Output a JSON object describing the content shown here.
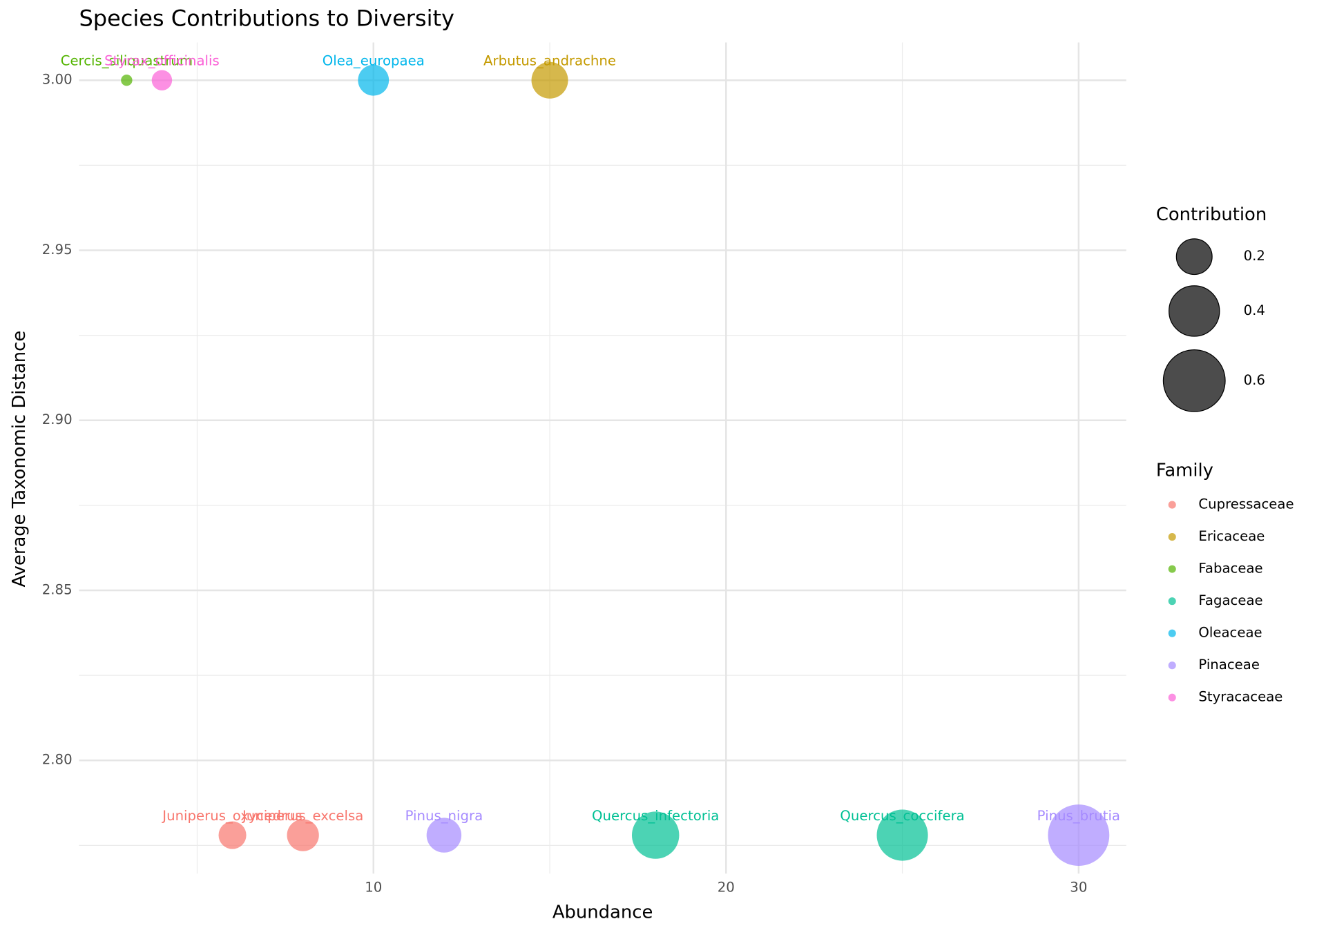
{
  "chart_data": {
    "type": "scatter",
    "title": "Species Contributions to Diversity",
    "x_label": "Abundance",
    "y_label": "Average Taxonomic Distance",
    "xlim": [
      1.65,
      31.35
    ],
    "ylim": [
      2.7667,
      3.0111
    ],
    "xticks": [
      10,
      20,
      30
    ],
    "yticks": [
      {
        "value": 2.8,
        "label": "2.80"
      },
      2.85,
      {
        "value": 2.9,
        "label": "2.90"
      },
      2.95,
      {
        "value": 3.0,
        "label": "3.00"
      }
    ],
    "x_minor_ticks": [
      5,
      15,
      25
    ],
    "y_minor_ticks": [
      2.775,
      2.825,
      2.875,
      2.925,
      2.975
    ],
    "grid": true,
    "legend_position": "right",
    "size_legend": {
      "title": "Contribution",
      "values": [
        0.2,
        0.4,
        0.6
      ]
    },
    "color_legend_title": "Family",
    "series": [
      {
        "name": "Cupressaceae",
        "color": "#F8766D",
        "labels": [
          "Juniperus_oxycedrus",
          "Juniperus_excelsa"
        ],
        "x": [
          6,
          8
        ],
        "y": [
          2.778,
          2.778
        ],
        "sizes": [
          0.12,
          0.16
        ]
      },
      {
        "name": "Ericaceae",
        "color": "#C49A00",
        "labels": [
          "Arbutus_andrachne"
        ],
        "x": [
          15
        ],
        "y": [
          3.0
        ],
        "sizes": [
          0.21
        ]
      },
      {
        "name": "Fabaceae",
        "color": "#53B400",
        "labels": [
          "Cercis_siliquastrum"
        ],
        "x": [
          3
        ],
        "y": [
          3.0
        ],
        "sizes": [
          0.02
        ]
      },
      {
        "name": "Fagaceae",
        "color": "#00C094",
        "labels": [
          "Quercus_infectoria",
          "Quercus_coccifera"
        ],
        "x": [
          18,
          25
        ],
        "y": [
          2.778,
          2.778
        ],
        "sizes": [
          0.35,
          0.41
        ]
      },
      {
        "name": "Oleaceae",
        "color": "#00B6EB",
        "labels": [
          "Olea_europaea"
        ],
        "x": [
          10
        ],
        "y": [
          3.0
        ],
        "sizes": [
          0.15
        ]
      },
      {
        "name": "Pinaceae",
        "color": "#A58AFF",
        "labels": [
          "Pinus_nigra",
          "Pinus_brutia"
        ],
        "x": [
          12,
          30
        ],
        "y": [
          2.778,
          2.778
        ],
        "sizes": [
          0.19,
          0.59
        ]
      },
      {
        "name": "Styracaceae",
        "color": "#FB61D7",
        "labels": [
          "Styrax_officinalis"
        ],
        "x": [
          4
        ],
        "y": [
          3.0
        ],
        "sizes": [
          0.065
        ]
      }
    ]
  }
}
